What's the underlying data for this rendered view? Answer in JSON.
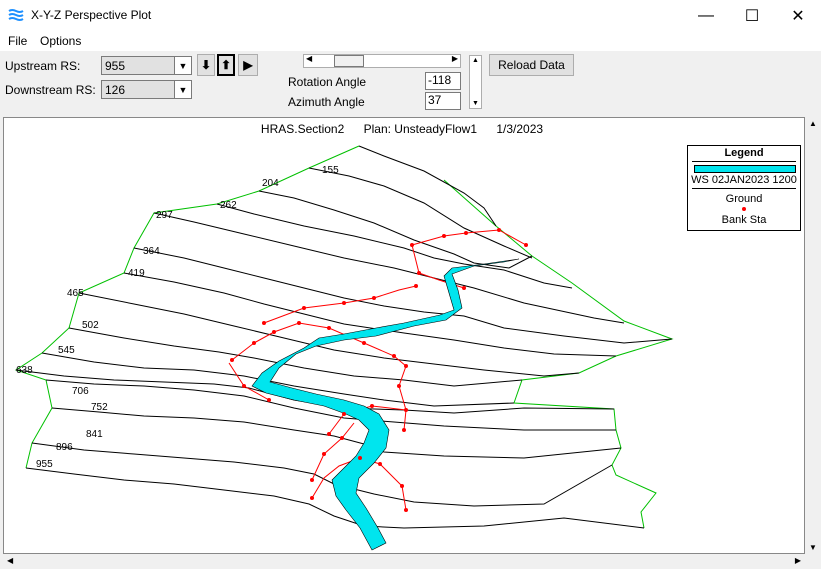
{
  "window": {
    "title": "X-Y-Z Perspective Plot",
    "minimize": "—",
    "maximize": "☐",
    "close": "✕"
  },
  "menu": {
    "file": "File",
    "options": "Options"
  },
  "toolbar": {
    "upstream_label": "Upstream RS:",
    "upstream_value": "955",
    "downstream_label": "Downstream RS:",
    "downstream_value": "126",
    "rotation_label": "Rotation Angle",
    "rotation_value": "-118",
    "azimuth_label": "Azimuth Angle",
    "azimuth_value": "37",
    "reload_label": "Reload Data"
  },
  "plot": {
    "name": "HRAS.Section2",
    "plan": "Plan: UnsteadyFlow1",
    "date": "1/3/2023",
    "section_labels": [
      "155",
      "204",
      "262",
      "297",
      "364",
      "419",
      "465",
      "502",
      "545",
      "638",
      "706",
      "752",
      "841",
      "896",
      "955"
    ]
  },
  "legend": {
    "title": "Legend",
    "ws": "WS 02JAN2023 1200",
    "ground": "Ground",
    "bank": "Bank Sta"
  },
  "colors": {
    "water": "#00e5ee",
    "ground": "#000000",
    "bank": "#ff0000",
    "boundary": "#00c000"
  }
}
